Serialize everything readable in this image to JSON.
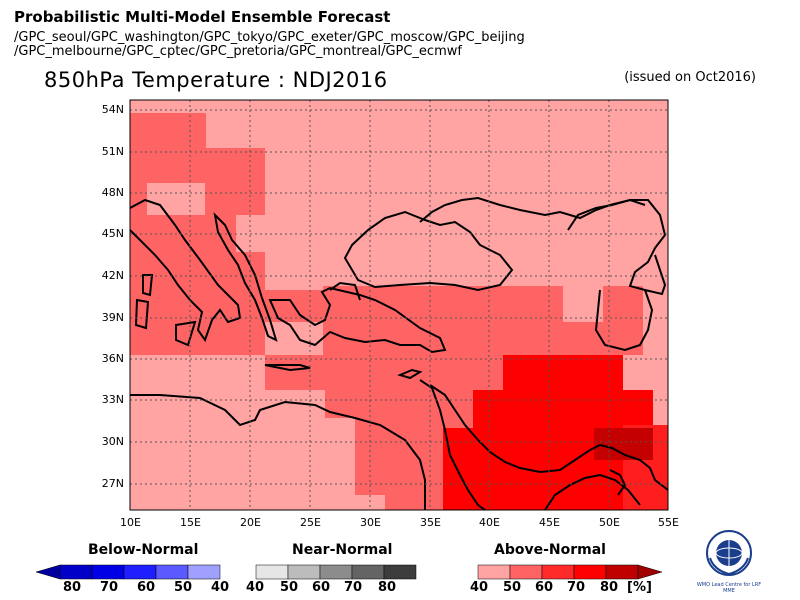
{
  "header": {
    "title": "Probabilistic Multi-Model Ensemble Forecast",
    "subtitle_line1": "/GPC_seoul/GPC_washington/GPC_tokyo/GPC_exeter/GPC_moscow/GPC_beijing",
    "subtitle_line2": "/GPC_melbourne/GPC_cptec/GPC_pretoria/GPC_montreal/GPC_ecmwf"
  },
  "map": {
    "title": "850hPa Temperature : NDJ2016",
    "issued": "(issued on Oct2016)",
    "lat_labels": [
      "54N",
      "51N",
      "48N",
      "45N",
      "42N",
      "39N",
      "36N",
      "33N",
      "30N",
      "27N"
    ],
    "lon_labels": [
      "10E",
      "15E",
      "20E",
      "25E",
      "30E",
      "35E",
      "40E",
      "45E",
      "50E",
      "55E"
    ],
    "colors": {
      "background_above40": "#ffa3a3",
      "above50": "#ff6464",
      "above60": "#ff2a2a",
      "above70": "#ff0000",
      "above80": "#c00000"
    }
  },
  "legend": {
    "below": {
      "label": "Below-Normal",
      "ticks": [
        "80",
        "70",
        "60",
        "50",
        "40"
      ]
    },
    "near": {
      "label": "Near-Normal",
      "ticks": [
        "40",
        "50",
        "60",
        "70",
        "80"
      ]
    },
    "above": {
      "label": "Above-Normal",
      "ticks": [
        "40",
        "50",
        "60",
        "70",
        "80"
      ],
      "unit": "[%]"
    }
  },
  "logo": {
    "caption": "WMO Lead Centre for LRF MME"
  }
}
